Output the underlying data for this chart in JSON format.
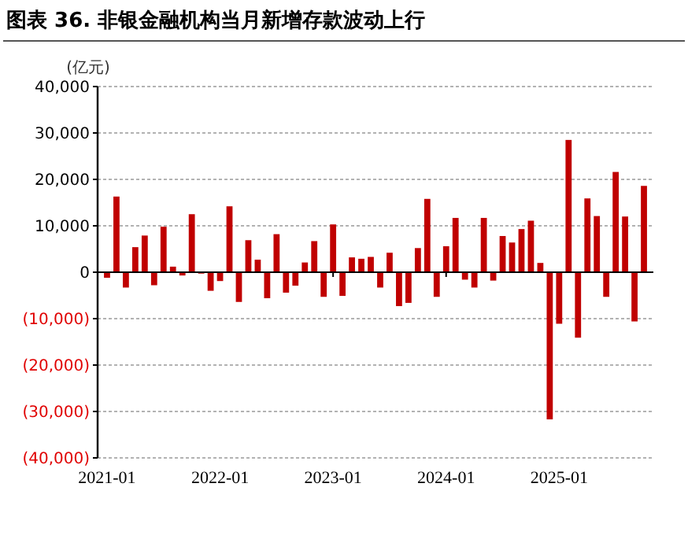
{
  "chart_data": {
    "type": "bar",
    "title": "图表 36.  非银金融机构当月新增存款波动上行",
    "ylabel": "(亿元)",
    "x": [
      "2021-01",
      "2021-02",
      "2021-03",
      "2021-04",
      "2021-05",
      "2021-06",
      "2021-07",
      "2021-08",
      "2021-09",
      "2021-10",
      "2021-11",
      "2021-12",
      "2022-01",
      "2022-02",
      "2022-03",
      "2022-04",
      "2022-05",
      "2022-06",
      "2022-07",
      "2022-08",
      "2022-09",
      "2022-10",
      "2022-11",
      "2022-12",
      "2023-01",
      "2023-02",
      "2023-03",
      "2023-04",
      "2023-05",
      "2023-06",
      "2023-07",
      "2023-08",
      "2023-09",
      "2023-10",
      "2023-11",
      "2023-12",
      "2024-01",
      "2024-02",
      "2024-03",
      "2024-04",
      "2024-05",
      "2024-06",
      "2024-07",
      "2024-08",
      "2024-09",
      "2024-10",
      "2024-11",
      "2024-12",
      "2025-01",
      "2025-02",
      "2025-03",
      "2025-04",
      "2025-05",
      "2025-06",
      "2025-07",
      "2025-08",
      "2025-09",
      "2025-10"
    ],
    "values": [
      -1200,
      16300,
      -3300,
      5400,
      7900,
      -2800,
      9800,
      1200,
      -700,
      12500,
      -300,
      -4000,
      -1900,
      14200,
      -6400,
      6900,
      2700,
      -5600,
      8200,
      -4400,
      -2900,
      2100,
      6700,
      -5300,
      10300,
      -5100,
      3200,
      2900,
      3300,
      -3300,
      4200,
      -7300,
      -6600,
      5200,
      15800,
      -5300,
      5600,
      11700,
      -1600,
      -3300,
      11700,
      -1800,
      7800,
      6400,
      9300,
      11100,
      2000,
      -31700,
      -11100,
      28500,
      -14100,
      15900,
      12100,
      -5300,
      21600,
      12000,
      -10600,
      18600
    ],
    "color": "#c00000",
    "xlim": [
      "2020-12",
      "2025-11"
    ],
    "xticks": [
      "2021-01",
      "2022-01",
      "2023-01",
      "2024-01",
      "2025-01"
    ],
    "ylim": [
      -40000,
      40000
    ],
    "yticks": [
      {
        "value": 40000,
        "label": "40,000"
      },
      {
        "value": 30000,
        "label": "30,000"
      },
      {
        "value": 20000,
        "label": "20,000"
      },
      {
        "value": 10000,
        "label": "10,000"
      },
      {
        "value": 0,
        "label": "0"
      },
      {
        "value": -10000,
        "label": "(10,000)"
      },
      {
        "value": -20000,
        "label": "(20,000)"
      },
      {
        "value": -30000,
        "label": "(30,000)"
      },
      {
        "value": -40000,
        "label": "(40,000)"
      }
    ],
    "grid": "y"
  }
}
